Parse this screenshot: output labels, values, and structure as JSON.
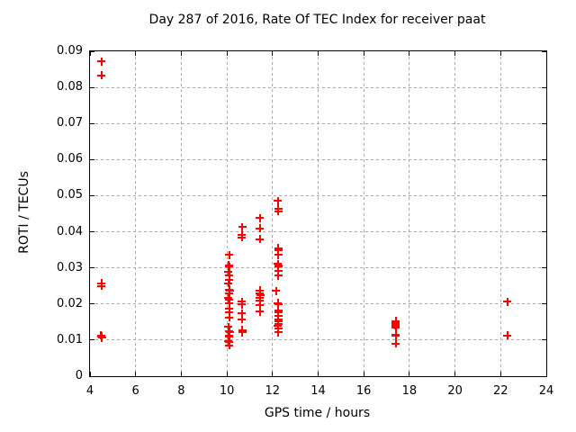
{
  "chart_data": {
    "type": "scatter",
    "title": "Day 287 of 2016, Rate Of TEC Index for receiver paat",
    "xlabel": "GPS time / hours",
    "ylabel": "ROTI / TECUs",
    "xlim": [
      4,
      24
    ],
    "ylim": [
      0,
      0.09
    ],
    "xticks": [
      4,
      6,
      8,
      10,
      12,
      14,
      16,
      18,
      20,
      22,
      24
    ],
    "yticks": [
      0,
      0.01,
      0.02,
      0.03,
      0.04,
      0.05,
      0.06,
      0.07,
      0.08,
      0.09
    ],
    "grid": true,
    "legend": "none",
    "marker": "plus",
    "colors": {
      "marker": "#ff0000",
      "grid": "#a8a8a8",
      "axis": "#000000"
    },
    "series": [
      {
        "name": "ROTI",
        "points": [
          [
            4.5,
            0.0872
          ],
          [
            4.5,
            0.0833
          ],
          [
            4.51,
            0.0257
          ],
          [
            4.51,
            0.025
          ],
          [
            4.49,
            0.0113
          ],
          [
            4.51,
            0.011
          ],
          [
            4.53,
            0.0107
          ],
          [
            10.1,
            0.0336
          ],
          [
            10.08,
            0.0307
          ],
          [
            10.11,
            0.0303
          ],
          [
            10.06,
            0.029
          ],
          [
            10.1,
            0.0279
          ],
          [
            10.1,
            0.0268
          ],
          [
            10.06,
            0.0258
          ],
          [
            10.1,
            0.024
          ],
          [
            10.12,
            0.0237
          ],
          [
            10.1,
            0.0229
          ],
          [
            10.06,
            0.0216
          ],
          [
            10.1,
            0.0213
          ],
          [
            10.1,
            0.0202
          ],
          [
            10.1,
            0.0188
          ],
          [
            10.1,
            0.0176
          ],
          [
            10.1,
            0.0163
          ],
          [
            10.06,
            0.0137
          ],
          [
            10.1,
            0.0125
          ],
          [
            10.12,
            0.0122
          ],
          [
            10.08,
            0.0112
          ],
          [
            10.1,
            0.011
          ],
          [
            10.06,
            0.0097
          ],
          [
            10.1,
            0.0094
          ],
          [
            10.1,
            0.0085
          ],
          [
            10.68,
            0.0413
          ],
          [
            10.66,
            0.0391
          ],
          [
            10.66,
            0.0384
          ],
          [
            10.66,
            0.0206
          ],
          [
            10.66,
            0.0199
          ],
          [
            10.66,
            0.0174
          ],
          [
            10.66,
            0.0158
          ],
          [
            10.67,
            0.0128
          ],
          [
            10.67,
            0.0121
          ],
          [
            11.45,
            0.0438
          ],
          [
            11.45,
            0.0409
          ],
          [
            11.45,
            0.038
          ],
          [
            11.45,
            0.0237
          ],
          [
            11.44,
            0.023
          ],
          [
            11.46,
            0.0224
          ],
          [
            11.45,
            0.0218
          ],
          [
            11.45,
            0.0209
          ],
          [
            11.45,
            0.0196
          ],
          [
            11.45,
            0.0179
          ],
          [
            12.24,
            0.0486
          ],
          [
            12.25,
            0.0463
          ],
          [
            12.25,
            0.0457
          ],
          [
            12.26,
            0.0355
          ],
          [
            12.26,
            0.035
          ],
          [
            12.25,
            0.0336
          ],
          [
            12.24,
            0.0311
          ],
          [
            12.26,
            0.0307
          ],
          [
            12.25,
            0.0303
          ],
          [
            12.25,
            0.0291
          ],
          [
            12.25,
            0.0278
          ],
          [
            12.15,
            0.0236
          ],
          [
            12.24,
            0.0202
          ],
          [
            12.26,
            0.0199
          ],
          [
            12.25,
            0.0182
          ],
          [
            12.25,
            0.0178
          ],
          [
            12.25,
            0.0167
          ],
          [
            12.25,
            0.0156
          ],
          [
            12.26,
            0.0151
          ],
          [
            12.25,
            0.0144
          ],
          [
            12.24,
            0.0139
          ],
          [
            12.25,
            0.0131
          ],
          [
            12.25,
            0.0122
          ],
          [
            17.4,
            0.0153
          ],
          [
            17.4,
            0.0149
          ],
          [
            17.41,
            0.0146
          ],
          [
            17.39,
            0.0142
          ],
          [
            17.4,
            0.0138
          ],
          [
            17.4,
            0.0134
          ],
          [
            17.4,
            0.0115
          ],
          [
            17.41,
            0.0111
          ],
          [
            17.4,
            0.009
          ],
          [
            22.29,
            0.0206
          ],
          [
            22.29,
            0.0113
          ]
        ]
      }
    ]
  }
}
